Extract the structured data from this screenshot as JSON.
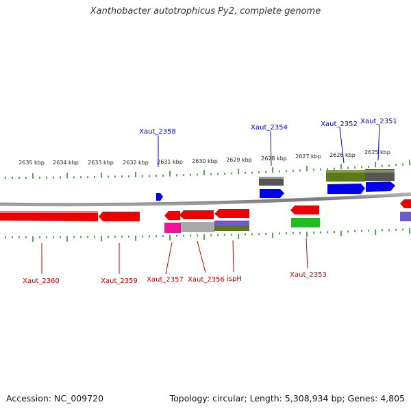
{
  "title": "Xanthobacter autotrophicus Py2, complete genome",
  "footer": {
    "accession": "Accession: NC_009720",
    "summary": "Topology: circular; Length: 5,308,934 bp; Genes: 4,805"
  },
  "colors": {
    "forward_label": "#0000cc",
    "reverse_label": "#cc0000",
    "tick": "#1a8a1a",
    "backbone": "#888888"
  },
  "ruler": {
    "labels": [
      "2635 kbp",
      "2634 kbp",
      "2633 kbp",
      "2632 kbp",
      "2631 kbp",
      "2630 kbp",
      "2629 kbp",
      "2628 kbp",
      "2627 kbp",
      "2626 kbp",
      "2625 kbp"
    ]
  },
  "genes_forward": [
    "Xaut_2358",
    "Xaut_2354",
    "Xaut_2352",
    "Xaut_2351"
  ],
  "genes_reverse": [
    "Xaut_2360",
    "Xaut_2359",
    "Xaut_2357",
    "Xaut_2356",
    "ispH",
    "Xaut_2353"
  ]
}
